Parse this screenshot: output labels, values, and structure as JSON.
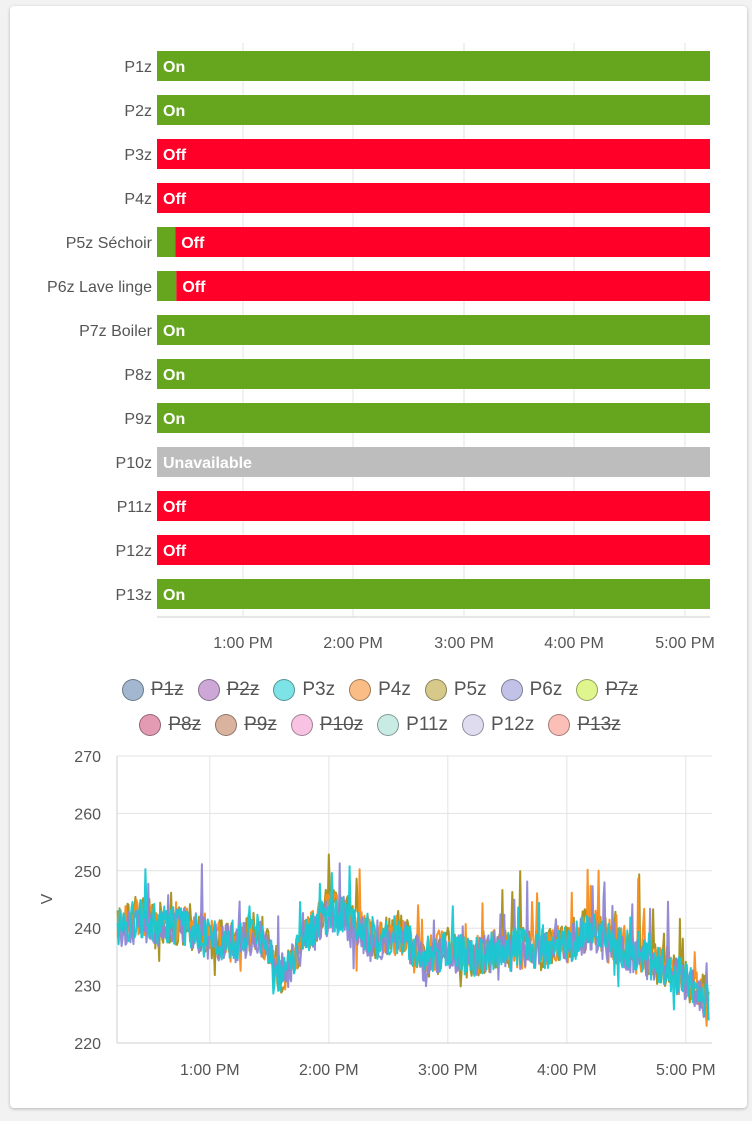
{
  "timeline": {
    "x_ticks": [
      "1:00 PM",
      "2:00 PM",
      "3:00 PM",
      "4:00 PM",
      "5:00 PM"
    ],
    "rows": [
      {
        "label": "P1z",
        "segments": [
          {
            "state": "On",
            "from": 0,
            "to": 1
          }
        ]
      },
      {
        "label": "P2z",
        "segments": [
          {
            "state": "On",
            "from": 0,
            "to": 1
          }
        ]
      },
      {
        "label": "P3z",
        "segments": [
          {
            "state": "Off",
            "from": 0,
            "to": 1
          }
        ]
      },
      {
        "label": "P4z",
        "segments": [
          {
            "state": "Off",
            "from": 0,
            "to": 1
          }
        ]
      },
      {
        "label": "P5z Séchoir",
        "segments": [
          {
            "state": "",
            "kind": "On",
            "from": 0,
            "to": 0.033
          },
          {
            "state": "Off",
            "from": 0.033,
            "to": 1
          }
        ]
      },
      {
        "label": "P6z Lave linge",
        "segments": [
          {
            "state": "",
            "kind": "On",
            "from": 0,
            "to": 0.035
          },
          {
            "state": "Off",
            "from": 0.035,
            "to": 1
          }
        ]
      },
      {
        "label": "P7z Boiler",
        "segments": [
          {
            "state": "On",
            "from": 0,
            "to": 1
          }
        ]
      },
      {
        "label": "P8z",
        "segments": [
          {
            "state": "On",
            "from": 0,
            "to": 1
          }
        ]
      },
      {
        "label": "P9z",
        "segments": [
          {
            "state": "On",
            "from": 0,
            "to": 1
          }
        ]
      },
      {
        "label": "P10z",
        "segments": [
          {
            "state": "Unavailable",
            "from": 0,
            "to": 1
          }
        ]
      },
      {
        "label": "P11z",
        "segments": [
          {
            "state": "Off",
            "from": 0,
            "to": 1
          }
        ]
      },
      {
        "label": "P12z",
        "segments": [
          {
            "state": "Off",
            "from": 0,
            "to": 1
          }
        ]
      },
      {
        "label": "P13z",
        "segments": [
          {
            "state": "On",
            "from": 0,
            "to": 1
          }
        ]
      }
    ],
    "state_colors": {
      "On": "#66a61e",
      "Off": "#ff0029",
      "Unavailable": "#bdbdbd"
    }
  },
  "legend": {
    "items": [
      {
        "label": "P1z",
        "color": "#a3b8d0",
        "hidden": true
      },
      {
        "label": "P2z",
        "color": "#cda8d7",
        "hidden": true
      },
      {
        "label": "P3z",
        "color": "#7de3e6",
        "hidden": false
      },
      {
        "label": "P4z",
        "color": "#f9bd85",
        "hidden": false
      },
      {
        "label": "P5z",
        "color": "#d6c98a",
        "hidden": false
      },
      {
        "label": "P6z",
        "color": "#c2c2e8",
        "hidden": false
      },
      {
        "label": "P7z",
        "color": "#dff58e",
        "hidden": true
      },
      {
        "label": "P8z",
        "color": "#e29bb3",
        "hidden": true
      },
      {
        "label": "P9z",
        "color": "#d9b39e",
        "hidden": true
      },
      {
        "label": "P10z",
        "color": "#f8c3e2",
        "hidden": true
      },
      {
        "label": "P11z",
        "color": "#c8ece3",
        "hidden": false
      },
      {
        "label": "P12z",
        "color": "#dfdcf0",
        "hidden": false
      },
      {
        "label": "P13z",
        "color": "#fbbfb7",
        "hidden": true
      }
    ]
  },
  "chart_data": {
    "type": "line",
    "ylabel": "V",
    "ylim": [
      220,
      270
    ],
    "y_ticks": [
      220,
      230,
      240,
      250,
      260,
      270
    ],
    "x_ticks": [
      "1:00 PM",
      "2:00 PM",
      "3:00 PM",
      "4:00 PM",
      "5:00 PM"
    ],
    "x_range_hours": [
      12.22,
      17.22
    ],
    "grid": true,
    "series": [
      {
        "name": "P5z",
        "color": "#a48f17",
        "x": [
          12.2,
          12.4,
          12.6,
          12.8,
          13.0,
          13.2,
          13.4,
          13.6,
          13.8,
          14.0,
          14.2,
          14.4,
          14.6,
          14.8,
          15.0,
          15.2,
          15.4,
          15.6,
          15.8,
          16.0,
          16.2,
          16.4,
          16.6,
          16.8,
          17.0,
          17.2
        ],
        "y": [
          240,
          243,
          241,
          240,
          238,
          238,
          240,
          232,
          238,
          244,
          242,
          238,
          240,
          234,
          236,
          234,
          236,
          237,
          236,
          238,
          241,
          237,
          236,
          233,
          231,
          228
        ]
      },
      {
        "name": "P4z",
        "color": "#f88d1e",
        "x": [
          12.2,
          12.4,
          12.6,
          12.8,
          13.0,
          13.2,
          13.4,
          13.6,
          13.8,
          14.0,
          14.2,
          14.4,
          14.6,
          14.8,
          15.0,
          15.2,
          15.4,
          15.6,
          15.8,
          16.0,
          16.2,
          16.4,
          16.6,
          16.8,
          17.0,
          17.2
        ],
        "y": [
          241,
          242,
          242,
          241,
          239,
          237,
          240,
          230,
          239,
          243,
          241,
          238,
          239,
          235,
          237,
          235,
          237,
          236,
          237,
          237,
          240,
          238,
          236,
          234,
          231,
          228
        ]
      },
      {
        "name": "P6z",
        "color": "#8f86d4",
        "x": [
          12.2,
          12.4,
          12.6,
          12.8,
          13.0,
          13.2,
          13.4,
          13.6,
          13.8,
          14.0,
          14.2,
          14.4,
          14.6,
          14.8,
          15.0,
          15.2,
          15.4,
          15.6,
          15.8,
          16.0,
          16.2,
          16.4,
          16.6,
          16.8,
          17.0,
          17.2
        ],
        "y": [
          239,
          241,
          240,
          240,
          238,
          237,
          239,
          231,
          237,
          242,
          240,
          237,
          239,
          234,
          236,
          235,
          236,
          236,
          236,
          237,
          239,
          237,
          235,
          233,
          230,
          227
        ]
      },
      {
        "name": "P3z",
        "color": "#17c9d3",
        "x": [
          12.2,
          12.4,
          12.6,
          12.8,
          13.0,
          13.2,
          13.4,
          13.6,
          13.8,
          14.0,
          14.2,
          14.4,
          14.6,
          14.8,
          15.0,
          15.2,
          15.4,
          15.6,
          15.8,
          16.0,
          16.2,
          16.4,
          16.6,
          16.8,
          17.0,
          17.2
        ],
        "y": [
          240,
          242,
          241,
          240,
          238,
          238,
          239,
          231,
          238,
          243,
          241,
          238,
          239,
          235,
          236,
          235,
          236,
          237,
          236,
          237,
          240,
          237,
          236,
          233,
          231,
          227
        ]
      }
    ]
  }
}
